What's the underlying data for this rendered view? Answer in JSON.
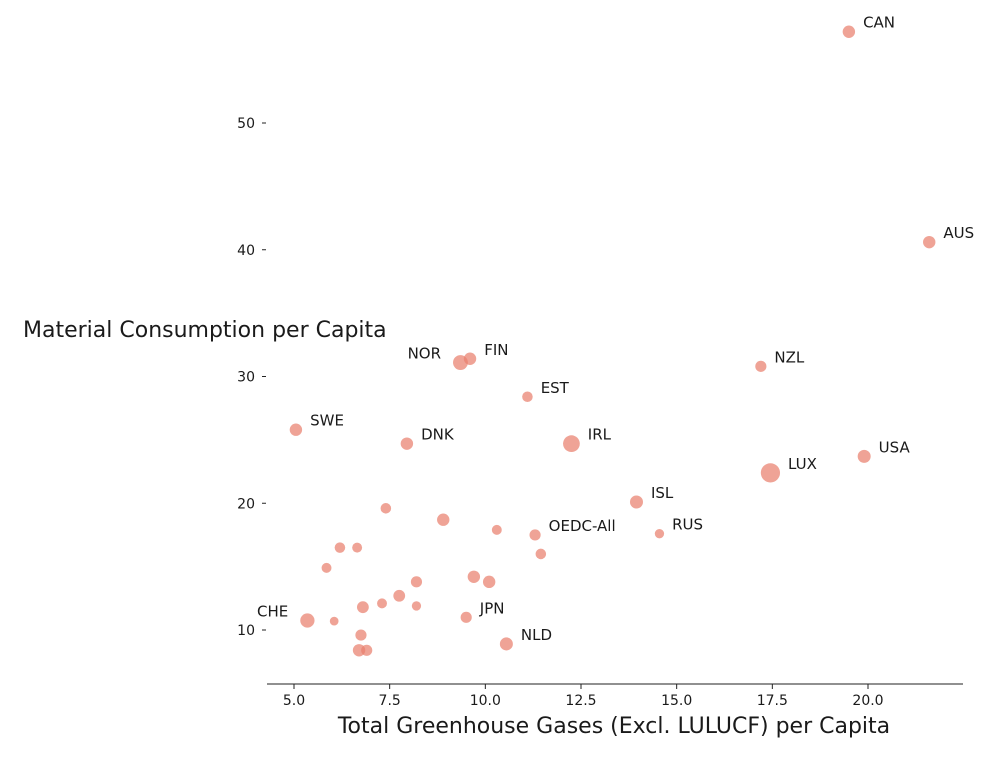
{
  "chart_data": {
    "type": "scatter",
    "title": "",
    "xlabel": "Total Greenhouse Gases (Excl. LULUCF) per Capita",
    "ylabel": "Material Consumption per Capita",
    "xlim": [
      4.4,
      22.6
    ],
    "ylim": [
      6.0,
      58.5
    ],
    "xticks": [
      5.0,
      7.5,
      10.0,
      12.5,
      15.0,
      17.5,
      20.0
    ],
    "xtick_labels": [
      "5.0",
      "7.5",
      "10.0",
      "12.5",
      "15.0",
      "17.5",
      "20.0"
    ],
    "yticks": [
      10,
      20,
      30,
      40,
      50
    ],
    "ytick_labels": [
      "10",
      "20",
      "30",
      "40",
      "50"
    ],
    "grid": false,
    "marker_color": "#e9806e",
    "points": [
      {
        "label": "CAN",
        "x": 19.5,
        "y": 57.2,
        "size": 1.0,
        "label_side": "right"
      },
      {
        "label": "AUS",
        "x": 21.6,
        "y": 40.6,
        "size": 1.0,
        "label_side": "right"
      },
      {
        "label": "NOR",
        "x": 9.35,
        "y": 31.1,
        "size": 1.2,
        "label_side": "left"
      },
      {
        "label": "FIN",
        "x": 9.6,
        "y": 31.4,
        "size": 1.0,
        "label_side": "right"
      },
      {
        "label": "NZL",
        "x": 17.2,
        "y": 30.8,
        "size": 0.9,
        "label_side": "right"
      },
      {
        "label": "EST",
        "x": 11.1,
        "y": 28.4,
        "size": 0.85,
        "label_side": "right"
      },
      {
        "label": "SWE",
        "x": 5.05,
        "y": 25.8,
        "size": 1.0,
        "label_side": "right"
      },
      {
        "label": "DNK",
        "x": 7.95,
        "y": 24.7,
        "size": 1.0,
        "label_side": "right"
      },
      {
        "label": "IRL",
        "x": 12.25,
        "y": 24.7,
        "size": 1.35,
        "label_side": "right"
      },
      {
        "label": "USA",
        "x": 19.9,
        "y": 23.7,
        "size": 1.05,
        "label_side": "right"
      },
      {
        "label": "LUX",
        "x": 17.45,
        "y": 22.4,
        "size": 1.55,
        "label_side": "right"
      },
      {
        "label": "ISL",
        "x": 13.95,
        "y": 20.1,
        "size": 1.05,
        "label_side": "right"
      },
      {
        "label": "",
        "x": 7.4,
        "y": 19.6,
        "size": 0.85,
        "label_side": "right"
      },
      {
        "label": "",
        "x": 8.9,
        "y": 18.7,
        "size": 1.0,
        "label_side": "right"
      },
      {
        "label": "",
        "x": 10.3,
        "y": 17.9,
        "size": 0.8,
        "label_side": "right"
      },
      {
        "label": "OEDC-All",
        "x": 11.3,
        "y": 17.5,
        "size": 0.9,
        "label_side": "right"
      },
      {
        "label": "RUS",
        "x": 14.55,
        "y": 17.6,
        "size": 0.75,
        "label_side": "right"
      },
      {
        "label": "",
        "x": 6.2,
        "y": 16.5,
        "size": 0.85,
        "label_side": "right"
      },
      {
        "label": "",
        "x": 6.65,
        "y": 16.5,
        "size": 0.8,
        "label_side": "right"
      },
      {
        "label": "",
        "x": 11.45,
        "y": 16.0,
        "size": 0.85,
        "label_side": "right"
      },
      {
        "label": "",
        "x": 5.85,
        "y": 14.9,
        "size": 0.8,
        "label_side": "right"
      },
      {
        "label": "",
        "x": 9.7,
        "y": 14.2,
        "size": 1.0,
        "label_side": "right"
      },
      {
        "label": "",
        "x": 10.1,
        "y": 13.8,
        "size": 1.0,
        "label_side": "right"
      },
      {
        "label": "",
        "x": 8.2,
        "y": 13.8,
        "size": 0.9,
        "label_side": "right"
      },
      {
        "label": "",
        "x": 7.75,
        "y": 12.7,
        "size": 0.95,
        "label_side": "right"
      },
      {
        "label": "",
        "x": 7.3,
        "y": 12.1,
        "size": 0.8,
        "label_side": "right"
      },
      {
        "label": "",
        "x": 6.8,
        "y": 11.8,
        "size": 0.95,
        "label_side": "right"
      },
      {
        "label": "",
        "x": 8.2,
        "y": 11.9,
        "size": 0.75,
        "label_side": "right"
      },
      {
        "label": "CHE",
        "x": 5.35,
        "y": 10.75,
        "size": 1.15,
        "label_side": "left"
      },
      {
        "label": "",
        "x": 6.05,
        "y": 10.7,
        "size": 0.7,
        "label_side": "right"
      },
      {
        "label": "JPN",
        "x": 9.5,
        "y": 11.0,
        "size": 0.9,
        "label_side": "right"
      },
      {
        "label": "",
        "x": 6.75,
        "y": 9.6,
        "size": 0.9,
        "label_side": "right"
      },
      {
        "label": "NLD",
        "x": 10.55,
        "y": 8.9,
        "size": 1.05,
        "label_side": "right"
      },
      {
        "label": "",
        "x": 6.7,
        "y": 8.4,
        "size": 1.0,
        "label_side": "right"
      },
      {
        "label": "",
        "x": 6.9,
        "y": 8.4,
        "size": 0.9,
        "label_side": "right"
      }
    ]
  }
}
